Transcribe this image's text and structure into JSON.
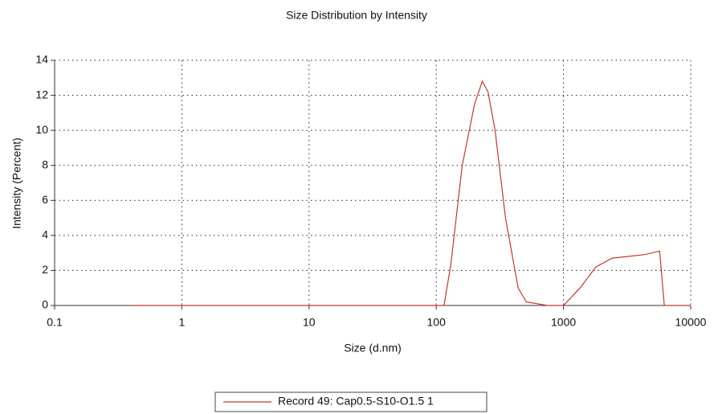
{
  "chart_data": {
    "type": "line",
    "title": "Size Distribution by Intensity",
    "x_label": "Size (d.nm)",
    "y_label": "Intensity (Percent)",
    "x_scale": "log",
    "xlim": [
      0.1,
      10000
    ],
    "xticks": [
      0.1,
      1,
      10,
      100,
      1000,
      10000
    ],
    "ylim": [
      0,
      14
    ],
    "yticks": [
      0,
      2,
      4,
      6,
      8,
      10,
      12,
      14
    ],
    "grid": true,
    "legend": "bottom",
    "series": [
      {
        "name": "Record 49: Cap0.5-S10-O1.5 1",
        "color": "#c0392b",
        "x": [
          0.4,
          115,
          130,
          160,
          200,
          230,
          255,
          290,
          350,
          440,
          510,
          750,
          1000,
          1350,
          1800,
          2400,
          3200,
          4300,
          5700,
          6200,
          10000
        ],
        "values": [
          0,
          0,
          2.3,
          8,
          11.5,
          12.8,
          12.2,
          10,
          5,
          1,
          0.2,
          0,
          0,
          1,
          2.2,
          2.7,
          2.8,
          2.9,
          3.1,
          0,
          0
        ]
      }
    ]
  }
}
